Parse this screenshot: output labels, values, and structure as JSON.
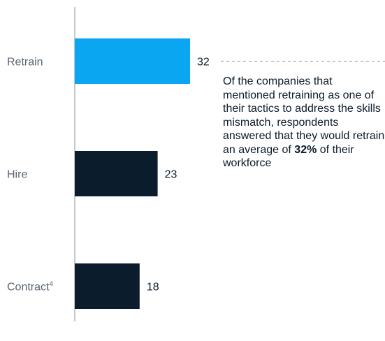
{
  "chart_data": {
    "type": "bar",
    "orientation": "horizontal",
    "categories": [
      "Retrain",
      "Hire",
      "Contract"
    ],
    "category_superscripts": [
      "",
      "",
      "4"
    ],
    "values": [
      32,
      23,
      18
    ],
    "value_labels": [
      "32",
      "23",
      "18"
    ],
    "highlight_index": 0,
    "xlim": [
      0,
      32
    ],
    "grid": false,
    "colors": {
      "highlight": "#0aa6f2",
      "default": "#0b1c2c",
      "axis": "#8c9196",
      "leader": "#8c9196"
    },
    "annotation": {
      "text_before": "Of the companies that mentioned retraining as one of their tactics to address the skills mismatch, respondents answered that they would retrain an average of ",
      "bold": "32%",
      "text_after": " of their workforce"
    }
  }
}
